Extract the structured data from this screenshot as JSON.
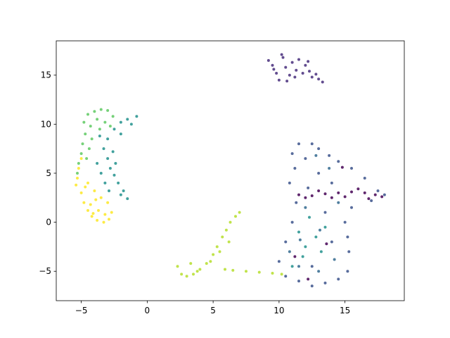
{
  "chart_data": {
    "type": "scatter",
    "xlim": [
      -6.9,
      19.5
    ],
    "ylim": [
      -8.0,
      18.5
    ],
    "xticks": [
      {
        "value": -5,
        "label": "−5"
      },
      0,
      5,
      10,
      15
    ],
    "yticks": [
      {
        "value": -5,
        "label": "−5"
      },
      0,
      5,
      10,
      15
    ],
    "series": [
      {
        "color": "#472d7b",
        "x": [
          9.2,
          9.5,
          9.8,
          10.0,
          10.3,
          10.5,
          10.8,
          11.0,
          11.3,
          11.5,
          11.8,
          12.0,
          12.3,
          12.5,
          12.8,
          13.0,
          13.3,
          10.2,
          9.6,
          11.2,
          12.2,
          10.6
        ],
        "values": [
          16.5,
          16.0,
          15.2,
          14.5,
          16.8,
          15.8,
          15.0,
          16.3,
          15.5,
          16.6,
          15.2,
          16.0,
          15.4,
          14.8,
          15.1,
          14.6,
          14.3,
          17.1,
          15.6,
          14.8,
          16.4,
          14.4
        ]
      },
      {
        "color": "#3b528b",
        "x": [
          11.0,
          11.5,
          12.5,
          13.0,
          13.8,
          14.5,
          15.5,
          16.5,
          17.5,
          18.0,
          17.0,
          15.5,
          15.0,
          15.2,
          15.3,
          15.2,
          14.5,
          13.5,
          12.5,
          11.5,
          10.5,
          10.0,
          10.5,
          11.0,
          11.3,
          10.8,
          11.2,
          12.0,
          13.0,
          14.0,
          12.5,
          14.0,
          13.5,
          12.2
        ],
        "values": [
          7.0,
          8.0,
          8.0,
          7.5,
          6.8,
          6.2,
          5.5,
          4.5,
          3.2,
          2.8,
          2.2,
          1.5,
          0.0,
          -1.5,
          -3.0,
          -5.0,
          -5.8,
          -6.2,
          -6.5,
          -6.0,
          -5.5,
          -4.0,
          -2.0,
          0.0,
          2.0,
          4.0,
          5.5,
          6.5,
          5.0,
          4.0,
          -4.5,
          -2.0,
          1.0,
          3.5
        ]
      },
      {
        "color": "#31688e",
        "x": [
          11.5,
          12.0,
          13.0,
          14.5,
          13.8,
          12.8,
          10.8,
          14.2,
          11.6,
          13.1
        ],
        "values": [
          -4.5,
          1.5,
          -5.0,
          2.0,
          5.5,
          6.8,
          -3.0,
          -3.8,
          -1.8,
          -0.8
        ]
      },
      {
        "color": "#21918c",
        "x": [
          -2.0,
          -1.5,
          -0.8,
          -1.2,
          -2.5,
          -3.0,
          -3.3,
          -3.0,
          -2.8,
          -2.5,
          -2.2,
          -1.8,
          -1.5,
          -2.0,
          -3.5,
          -3.8,
          -2.6,
          -3.2,
          -2.9,
          -2.4,
          -3.6,
          -2.0,
          11.5,
          12.0,
          12.8,
          11.8,
          13.2,
          12.3,
          11.0,
          13.5
        ],
        "values": [
          10.2,
          10.5,
          10.8,
          10.0,
          9.5,
          8.5,
          7.5,
          6.5,
          5.5,
          4.8,
          4.0,
          3.2,
          2.4,
          2.8,
          5.0,
          6.0,
          7.2,
          4.0,
          3.2,
          6.0,
          8.8,
          9.0,
          -1.0,
          -2.5,
          -1.5,
          -3.5,
          -3.0,
          0.5,
          -4.5,
          -0.5
        ]
      },
      {
        "color": "#5ec962",
        "x": [
          -4.8,
          -4.5,
          -4.0,
          -3.5,
          -3.0,
          -2.6,
          -4.7,
          -4.3,
          -3.8,
          -3.2,
          -4.9,
          -5.0,
          -4.6,
          -5.2,
          -4.2,
          -3.6,
          -2.8,
          -5.3,
          -4.4
        ],
        "values": [
          10.2,
          11.0,
          11.3,
          11.5,
          11.4,
          10.8,
          9.0,
          9.8,
          10.5,
          10.2,
          8.0,
          7.0,
          6.5,
          6.0,
          8.5,
          9.5,
          9.8,
          5.0,
          7.5
        ]
      },
      {
        "color": "#b5de2b",
        "x": [
          2.3,
          2.6,
          3.0,
          3.5,
          4.0,
          4.5,
          5.0,
          5.3,
          5.7,
          6.0,
          6.3,
          6.7,
          7.0,
          5.5,
          4.8,
          3.3,
          6.5,
          7.5,
          8.5,
          9.5,
          10.2,
          5.9,
          6.2,
          3.8
        ],
        "values": [
          -4.5,
          -5.3,
          -5.5,
          -5.3,
          -4.8,
          -4.2,
          -3.3,
          -2.5,
          -1.5,
          -0.8,
          0.0,
          0.6,
          1.0,
          -3.0,
          -4.0,
          -4.2,
          -4.9,
          -5.0,
          -5.1,
          -5.2,
          -5.3,
          -4.8,
          -2.0,
          -5.0
        ]
      },
      {
        "color": "#fde725",
        "x": [
          -5.3,
          -5.0,
          -4.8,
          -4.5,
          -4.2,
          -3.8,
          -3.3,
          -2.9,
          -2.7,
          -3.0,
          -3.5,
          -4.0,
          -4.5,
          -5.2,
          -5.0,
          -4.3,
          -3.7,
          -3.2,
          -4.7,
          -3.9,
          -5.4,
          -4.1
        ],
        "values": [
          4.5,
          3.0,
          2.0,
          1.2,
          0.6,
          0.2,
          0.0,
          0.3,
          1.0,
          2.0,
          2.5,
          3.2,
          4.0,
          5.5,
          6.5,
          1.8,
          1.2,
          0.8,
          3.6,
          2.3,
          3.8,
          0.9
        ]
      },
      {
        "color": "#440154",
        "x": [
          11.5,
          12.5,
          13.5,
          14.5,
          15.5,
          16.5,
          17.3,
          17.8,
          16.0,
          15.0,
          14.0,
          13.0,
          12.0,
          16.8,
          11.2,
          12.2,
          14.8,
          13.6
        ],
        "values": [
          2.8,
          2.7,
          2.9,
          3.0,
          3.1,
          3.0,
          2.8,
          2.6,
          3.4,
          2.6,
          2.5,
          3.2,
          2.5,
          2.4,
          -3.5,
          -5.8,
          5.6,
          -2.2
        ]
      }
    ]
  }
}
